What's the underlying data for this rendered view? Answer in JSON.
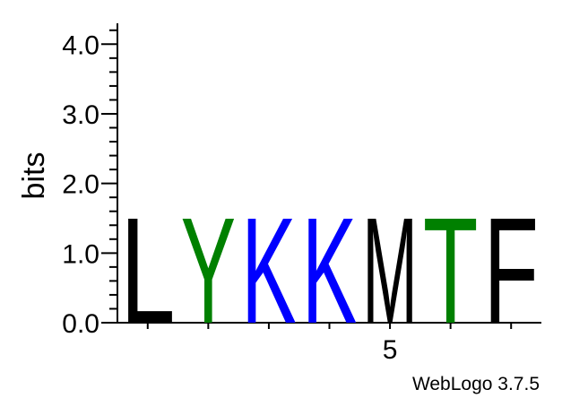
{
  "chart_data": {
    "type": "sequence-logo",
    "ylabel": "bits",
    "ylim": [
      0,
      4.3
    ],
    "yticks": [
      "0.0",
      "1.0",
      "2.0",
      "3.0",
      "4.0"
    ],
    "xtick_labels": [
      {
        "position": 5,
        "label": "5"
      }
    ],
    "footer": "WebLogo 3.7.5",
    "positions": [
      {
        "position": 1,
        "letter": "L",
        "bits": 1.75,
        "color": "#000000"
      },
      {
        "position": 2,
        "letter": "Y",
        "bits": 1.75,
        "color": "#008000"
      },
      {
        "position": 3,
        "letter": "K",
        "bits": 1.75,
        "color": "#0000ff"
      },
      {
        "position": 4,
        "letter": "K",
        "bits": 1.75,
        "color": "#0000ff"
      },
      {
        "position": 5,
        "letter": "M",
        "bits": 1.75,
        "color": "#000000"
      },
      {
        "position": 6,
        "letter": "T",
        "bits": 1.75,
        "color": "#008000"
      },
      {
        "position": 7,
        "letter": "F",
        "bits": 1.75,
        "color": "#000000"
      }
    ]
  }
}
